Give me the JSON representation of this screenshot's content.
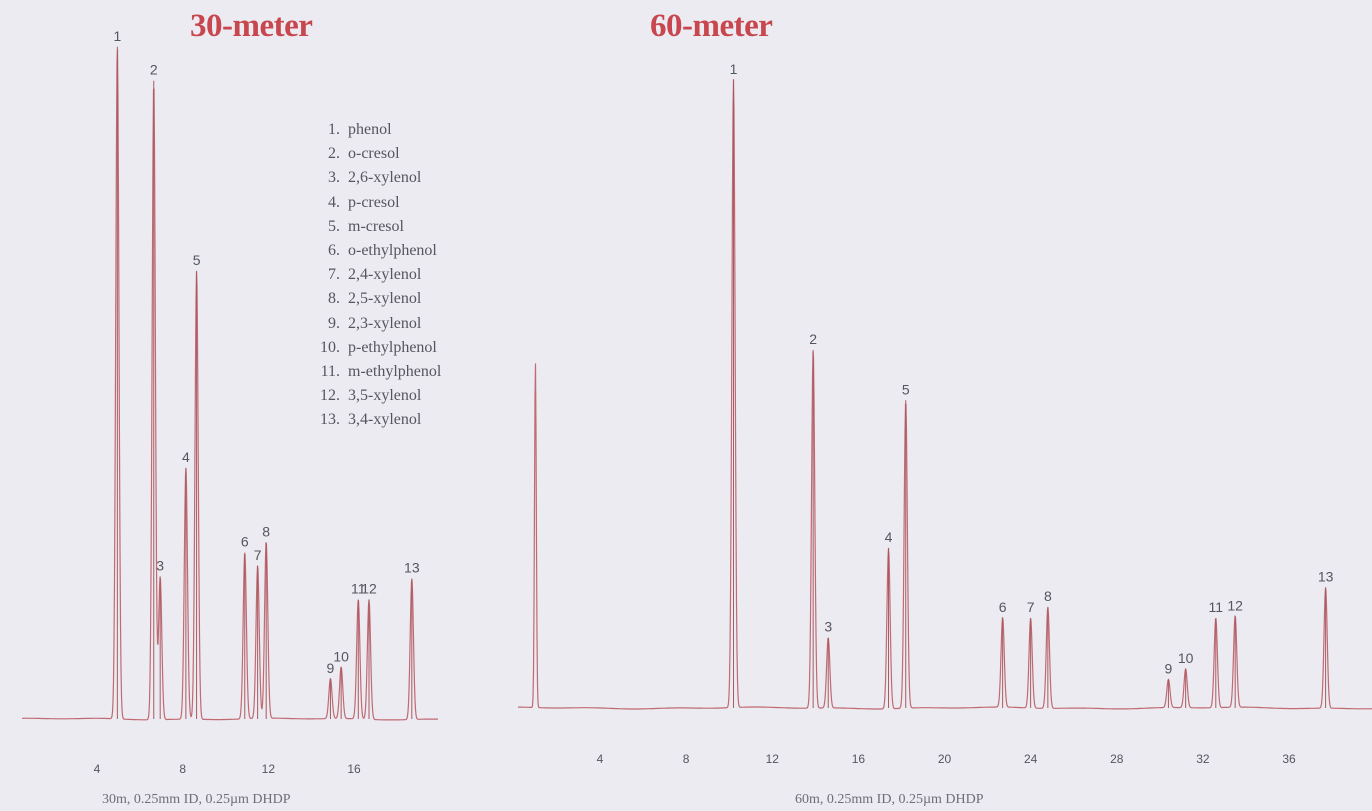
{
  "chart_data": [
    {
      "type": "line",
      "title": "30-meter",
      "caption": "30m, 0.25mm ID, 0.25µm  DHDP",
      "x_ticks": [
        4,
        8,
        12,
        16
      ],
      "xlim": [
        0,
        19.5
      ],
      "ylim": [
        0,
        100
      ],
      "line_color": "#c06a72",
      "grid": false,
      "legend_position": "top-center",
      "legend": [
        {
          "num": "1.",
          "name": "phenol"
        },
        {
          "num": "2.",
          "name": "o-cresol"
        },
        {
          "num": "3.",
          "name": "2,6-xylenol"
        },
        {
          "num": "4.",
          "name": "p-cresol"
        },
        {
          "num": "5.",
          "name": "m-cresol"
        },
        {
          "num": "6.",
          "name": "o-ethylphenol"
        },
        {
          "num": "7.",
          "name": "2,4-xylenol"
        },
        {
          "num": "8.",
          "name": "2,5-xylenol"
        },
        {
          "num": "9.",
          "name": "2,3-xylenol"
        },
        {
          "num": "10.",
          "name": "p-ethylphenol"
        },
        {
          "num": "11.",
          "name": "m-ethylphenol"
        },
        {
          "num": "12.",
          "name": "3,5-xylenol"
        },
        {
          "num": "13.",
          "name": "3,4-xylenol"
        }
      ],
      "start_spike": {
        "x": 0.0,
        "height": 95
      },
      "peaks": [
        {
          "label": "1",
          "x": 4.95,
          "height": 99
        },
        {
          "label": "2",
          "x": 6.65,
          "height": 94
        },
        {
          "label": "3",
          "x": 6.95,
          "height": 21
        },
        {
          "label": "4",
          "x": 8.15,
          "height": 37
        },
        {
          "label": "5",
          "x": 8.65,
          "height": 66
        },
        {
          "label": "6",
          "x": 10.9,
          "height": 24.5
        },
        {
          "label": "7",
          "x": 11.5,
          "height": 22.5
        },
        {
          "label": "8",
          "x": 11.9,
          "height": 26
        },
        {
          "label": "9",
          "x": 14.9,
          "height": 5.9
        },
        {
          "label": "10",
          "x": 15.4,
          "height": 7.6
        },
        {
          "label": "11",
          "x": 16.2,
          "height": 17.6
        },
        {
          "label": "12",
          "x": 16.7,
          "height": 17.6
        },
        {
          "label": "13",
          "x": 18.7,
          "height": 20.7
        }
      ]
    },
    {
      "type": "line",
      "title": "60-meter",
      "caption": "60m, 0.25mm ID, 0.25µm  DHDP",
      "x_ticks": [
        4,
        8,
        12,
        16,
        20,
        24,
        28,
        32,
        36
      ],
      "xlim": [
        0,
        39.5
      ],
      "ylim": [
        0,
        100
      ],
      "line_color": "#c06a72",
      "grid": false,
      "start_spike": {
        "x": 1.0,
        "height": 55
      },
      "peaks": [
        {
          "label": "1",
          "x": 10.2,
          "height": 100
        },
        {
          "label": "2",
          "x": 13.9,
          "height": 57
        },
        {
          "label": "3",
          "x": 14.6,
          "height": 11.2
        },
        {
          "label": "4",
          "x": 17.4,
          "height": 25.5
        },
        {
          "label": "5",
          "x": 18.2,
          "height": 49
        },
        {
          "label": "6",
          "x": 22.7,
          "height": 14.3
        },
        {
          "label": "7",
          "x": 24.0,
          "height": 14.3
        },
        {
          "label": "8",
          "x": 24.8,
          "height": 16.1
        },
        {
          "label": "9",
          "x": 30.4,
          "height": 4.5
        },
        {
          "label": "10",
          "x": 31.2,
          "height": 6.2
        },
        {
          "label": "11",
          "x": 32.6,
          "height": 14.3
        },
        {
          "label": "12",
          "x": 33.5,
          "height": 14.6
        },
        {
          "label": "13",
          "x": 37.7,
          "height": 19.2
        }
      ]
    }
  ]
}
